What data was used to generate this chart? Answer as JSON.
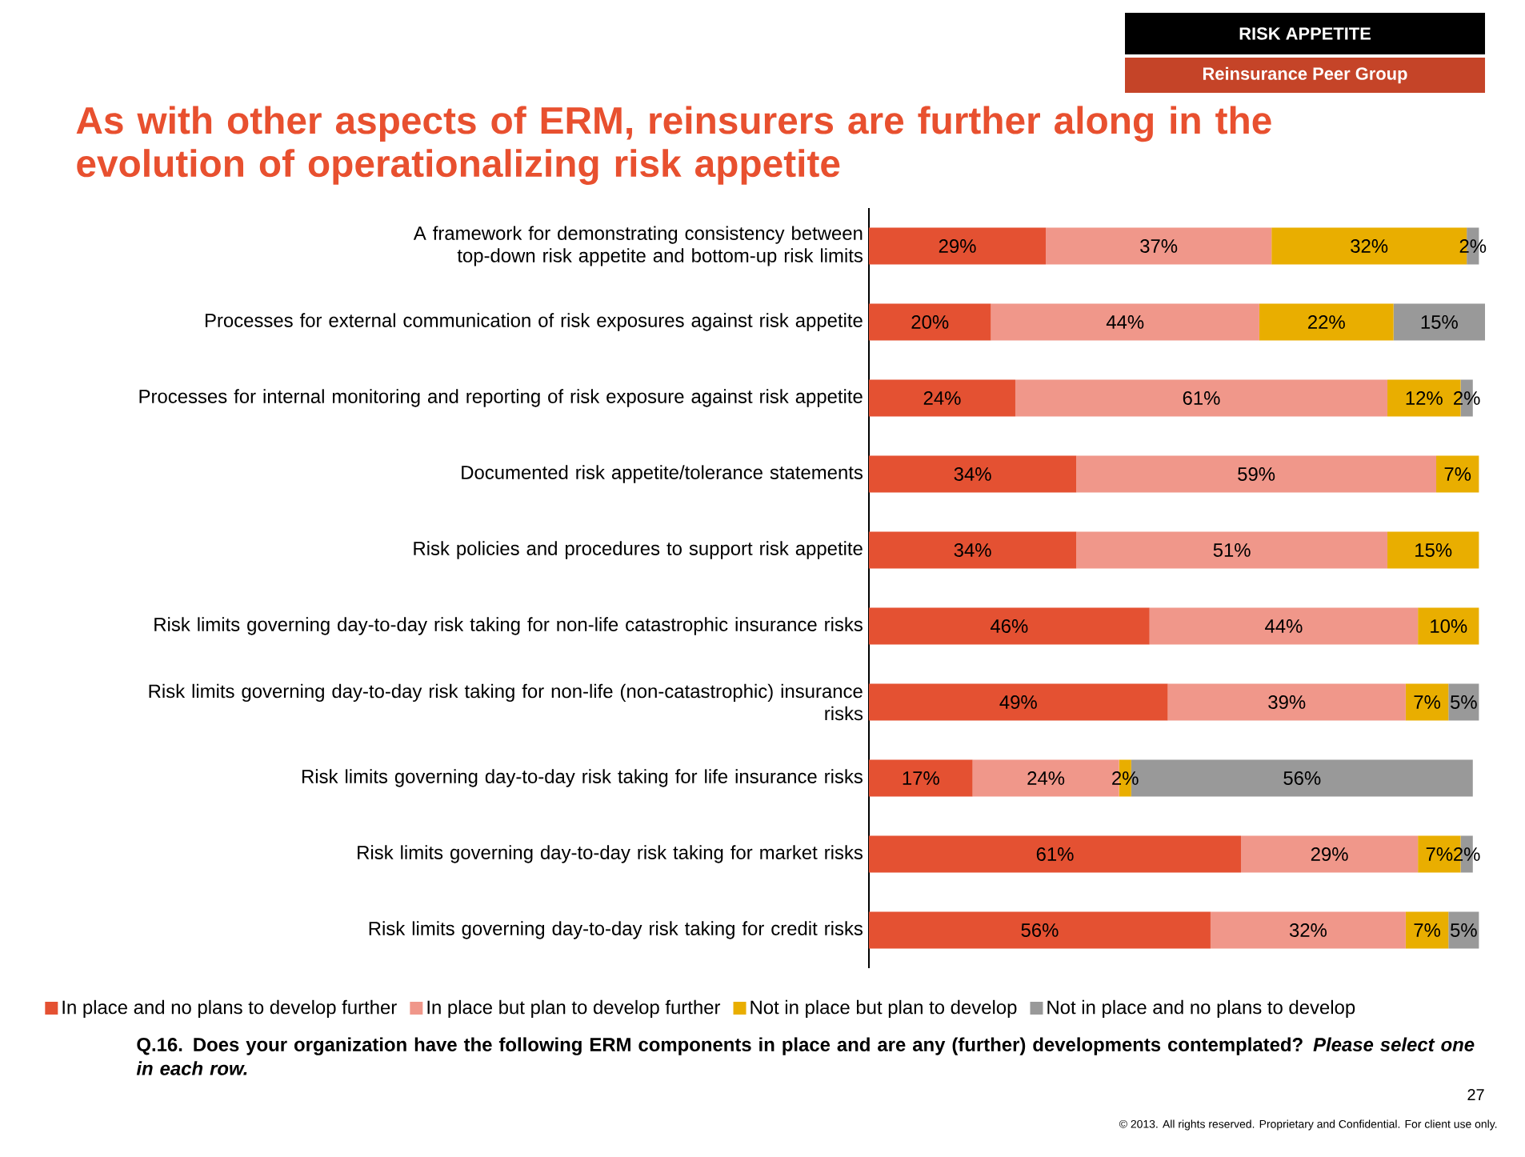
{
  "chart_data": {
    "type": "bar",
    "orientation": "horizontal",
    "stacked": true,
    "legend": "bottom",
    "tick_labels": "y",
    "title": "As with other aspects of ERM, reinsurers are further along in the evolution of operationalizing risk appetite",
    "categories": [
      "A framework for demonstrating consistency between top-down risk appetite and bottom-up risk limits",
      "Processes for external communication of risk exposures against risk appetite",
      "Processes for internal monitoring and reporting of risk exposure against risk appetite",
      "Documented risk appetite/tolerance statements",
      "Risk policies and procedures to support risk appetite",
      "Risk limits governing day-to-day risk taking for non-life catastrophic insurance risks",
      "Risk limits governing day-to-day risk taking for non-life (non-catastrophic) insurance risks",
      "Risk limits governing day-to-day risk taking for life insurance risks",
      "Risk limits governing day-to-day risk taking for market risks",
      "Risk limits governing day-to-day risk taking for credit risks"
    ],
    "series": [
      {
        "name": "In place and no plans to develop further",
        "color": "#e45132",
        "values": [
          29,
          20,
          24,
          34,
          34,
          46,
          49,
          17,
          61,
          56
        ],
        "value_labels": [
          "29%",
          "20%",
          "24%",
          "34%",
          "34%",
          "46%",
          "49%",
          "17%",
          "61%",
          "56%"
        ]
      },
      {
        "name": "In place but plan to develop further",
        "color": "#f0978a",
        "values": [
          37,
          44,
          61,
          59,
          51,
          44,
          39,
          24,
          29,
          32
        ],
        "value_labels": [
          "37%",
          "44%",
          "61%",
          "59%",
          "51%",
          "44%",
          "39%",
          "24%",
          "29%",
          "32%"
        ]
      },
      {
        "name": "Not in place but plan to develop",
        "color": "#e9ae00",
        "values": [
          32,
          22,
          12,
          7,
          15,
          10,
          7,
          2,
          7,
          7
        ],
        "value_labels": [
          "32%",
          "22%",
          "12%",
          "7%",
          "15%",
          "10%",
          "7%",
          "2%",
          "7%",
          "7%"
        ]
      },
      {
        "name": "Not in place and no plans to develop",
        "color": "#999999",
        "values": [
          2,
          15,
          2,
          null,
          null,
          null,
          5,
          56,
          2,
          5
        ],
        "value_labels": [
          "2%",
          "15%",
          "2%",
          null,
          null,
          null,
          "5%",
          "56%",
          "2%",
          "5%"
        ]
      }
    ],
    "annotations": [
      "RISK APPETITE",
      "Reinsurance Peer Group",
      "Q.16. Does your organization have the following ERM components in place and are any (further) developments contemplated? *Please select one in each row.*",
      "27",
      "© 2013. All rights reserved. Proprietary and Confidential. For client use only."
    ]
  }
}
